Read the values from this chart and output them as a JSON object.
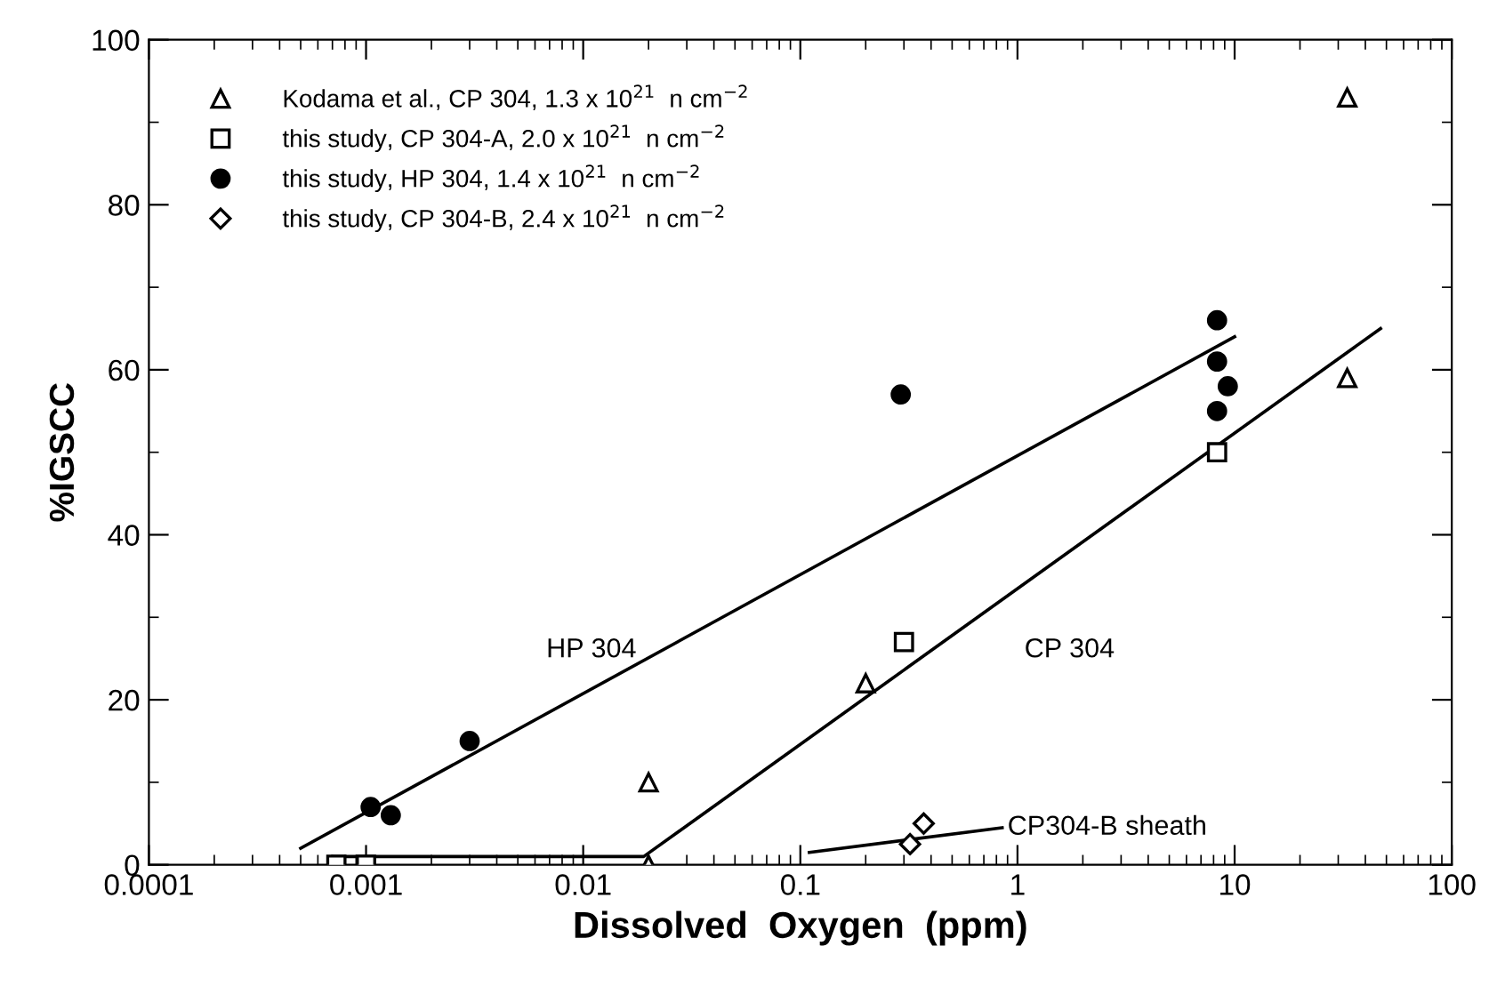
{
  "chart_data": {
    "type": "scatter",
    "xlabel": "Dissolved  Oxygen  (ppm)",
    "ylabel": "%IGSCC",
    "log": "x",
    "xlim": [
      0.0001,
      100
    ],
    "xticks": [
      {
        "value": 0.0001,
        "label": "0.0001"
      },
      {
        "value": 0.001,
        "label": "0.001"
      },
      {
        "value": 0.01,
        "label": "0.01"
      },
      {
        "value": 0.1,
        "label": "0.1"
      },
      {
        "value": 1,
        "label": "1"
      },
      {
        "value": 10,
        "label": "10"
      },
      {
        "value": 100,
        "label": "100"
      }
    ],
    "ylim": [
      0,
      100
    ],
    "yticks": [
      0,
      20,
      40,
      60,
      80,
      100
    ],
    "grid": false,
    "legend": "top left",
    "series": [
      {
        "name": "Kodama et al., CP 304, 1.3 x 10$^{21}$  n cm$^{−2}$",
        "color": "#000000",
        "marker": "triangle",
        "x": [
          33,
          33,
          0.2,
          0.02,
          0.02
        ],
        "values": [
          93,
          59,
          22,
          10,
          0
        ]
      },
      {
        "name": "this study, CP 304-A, 2.0 x 10$^{21}$  n cm$^{−2}$",
        "color": "#000000",
        "marker": "square",
        "x": [
          8.3,
          0.3,
          0.00073,
          0.001
        ],
        "values": [
          50,
          27,
          0,
          0
        ]
      },
      {
        "name": "this study, HP 304, 1.4 x 10$^{21}$  n cm$^{−2}$",
        "color": "#000000",
        "marker": "circle",
        "x": [
          8.3,
          8.3,
          9.3,
          8.3,
          0.29,
          0.003,
          0.00105,
          0.0013
        ],
        "values": [
          66,
          61,
          58,
          55,
          57,
          15,
          7,
          6
        ]
      },
      {
        "name": "this study, CP 304-B, 2.4 x 10$^{21}$  n cm$^{−2}$",
        "color": "#000000",
        "marker": "diamond",
        "x": [
          0.32,
          0.37
        ],
        "values": [
          2.5,
          5
        ]
      },
      {
        "type": "line",
        "color": "#000000",
        "x": [
          0.0005,
          10
        ],
        "values": [
          2,
          64
        ]
      },
      {
        "type": "line",
        "color": "#000000",
        "x": [
          0.0007,
          0.019,
          47
        ],
        "values": [
          1,
          1,
          65
        ]
      },
      {
        "type": "line",
        "color": "#000000",
        "x": [
          0.11,
          0.85
        ],
        "values": [
          1.5,
          4.5
        ]
      }
    ],
    "annotations": [
      "HP 304",
      "CP 304",
      {
        "text": "CP304-B sheath",
        "x": 0.9,
        "y": 4.5
      }
    ]
  }
}
